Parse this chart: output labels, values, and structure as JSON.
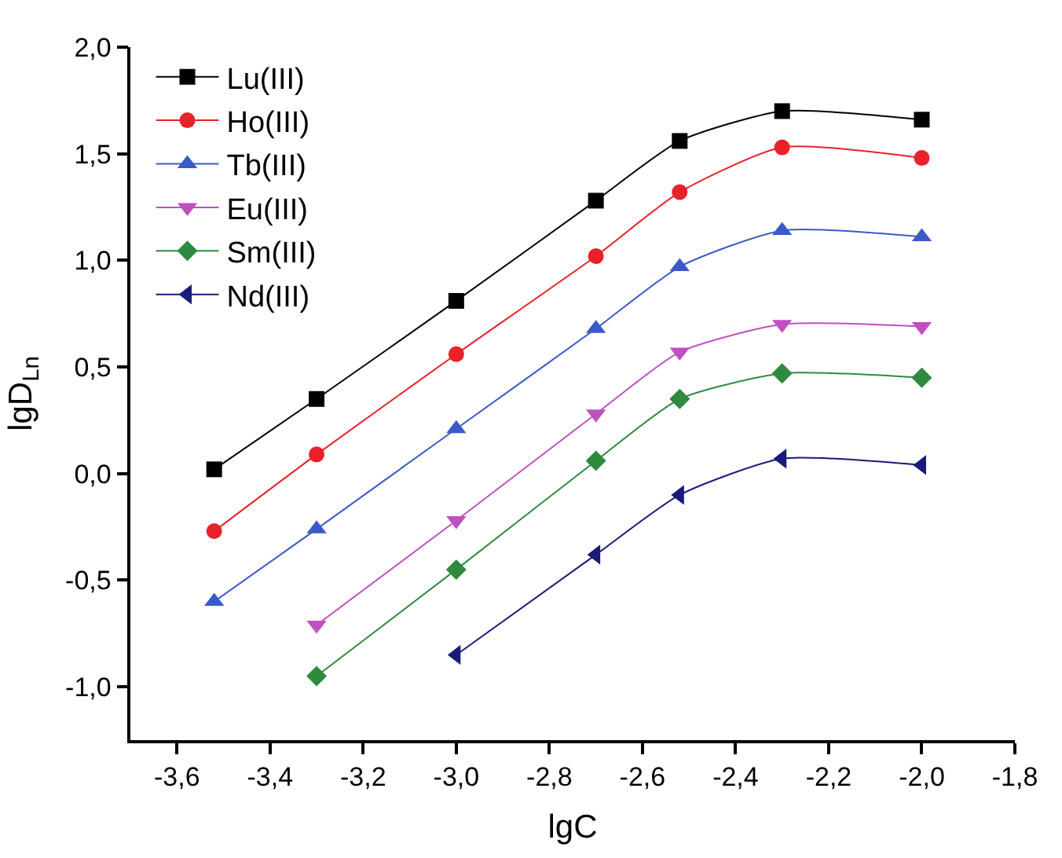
{
  "chart_data": {
    "type": "line",
    "xlabel": "lgC",
    "ylabel": "lgD$_{Ln}$",
    "xlim": [
      -3.7,
      -1.8
    ],
    "xticks": [
      {
        "value": -3.6,
        "label": "-3,6"
      },
      {
        "value": -3.4,
        "label": "-3,4"
      },
      {
        "value": -3.2,
        "label": "-3,2"
      },
      {
        "value": -3.0,
        "label": "-3,0"
      },
      {
        "value": -2.8,
        "label": "-2,8"
      },
      {
        "value": -2.6,
        "label": "-2,6"
      },
      {
        "value": -2.4,
        "label": "-2,4"
      },
      {
        "value": -2.2,
        "label": "-2,2"
      },
      {
        "value": -2.0,
        "label": "-2,0"
      },
      {
        "value": -1.8,
        "label": "-1,8"
      }
    ],
    "ylim": [
      -1.25,
      2.0
    ],
    "yticks": [
      {
        "value": -1.0,
        "label": "-1,0"
      },
      {
        "value": -0.5,
        "label": "-0,5"
      },
      {
        "value": 0.0,
        "label": "0,0"
      },
      {
        "value": 0.5,
        "label": "0,5"
      },
      {
        "value": 1.0,
        "label": "1,0"
      },
      {
        "value": 1.5,
        "label": "1,5"
      },
      {
        "value": 2.0,
        "label": "2,0"
      }
    ],
    "grid": false,
    "legend": "top left",
    "line_style": "solid",
    "series": [
      {
        "name": "Lu(III)",
        "color": "#000000",
        "marker": "square",
        "x": [
          -3.52,
          -3.3,
          -3.0,
          -2.7,
          -2.52,
          -2.3,
          -2.0
        ],
        "values": [
          0.02,
          0.35,
          0.81,
          1.28,
          1.56,
          1.7,
          1.66
        ]
      },
      {
        "name": "Ho(III)",
        "color": "#e8212a",
        "marker": "circle",
        "x": [
          -3.52,
          -3.3,
          -3.0,
          -2.7,
          -2.52,
          -2.3,
          -2.0
        ],
        "values": [
          -0.27,
          0.09,
          0.56,
          1.02,
          1.32,
          1.53,
          1.48
        ]
      },
      {
        "name": "Tb(III)",
        "color": "#3a5bc7",
        "marker": "triangle",
        "x": [
          -3.52,
          -3.3,
          -3.0,
          -2.7,
          -2.52,
          -2.3,
          -2.0
        ],
        "values": [
          -0.6,
          -0.26,
          0.21,
          0.68,
          0.97,
          1.14,
          1.11
        ]
      },
      {
        "name": "Eu(III)",
        "color": "#c050c0",
        "marker": "triangle-down",
        "x": [
          -3.3,
          -3.0,
          -2.7,
          -2.52,
          -2.3,
          -2.0
        ],
        "values": [
          -0.71,
          -0.22,
          0.28,
          0.57,
          0.7,
          0.69
        ]
      },
      {
        "name": "Sm(III)",
        "color": "#2e8b3e",
        "marker": "diamond",
        "x": [
          -3.3,
          -3.0,
          -2.7,
          -2.52,
          -2.3,
          -2.0
        ],
        "values": [
          -0.95,
          -0.45,
          0.06,
          0.35,
          0.47,
          0.45
        ]
      },
      {
        "name": "Nd(III)",
        "color": "#1a1a7a",
        "marker": "triangle-left",
        "x": [
          -3.0,
          -2.7,
          -2.52,
          -2.3,
          -2.0
        ],
        "values": [
          -0.85,
          -0.38,
          -0.1,
          0.07,
          0.04
        ]
      }
    ]
  }
}
